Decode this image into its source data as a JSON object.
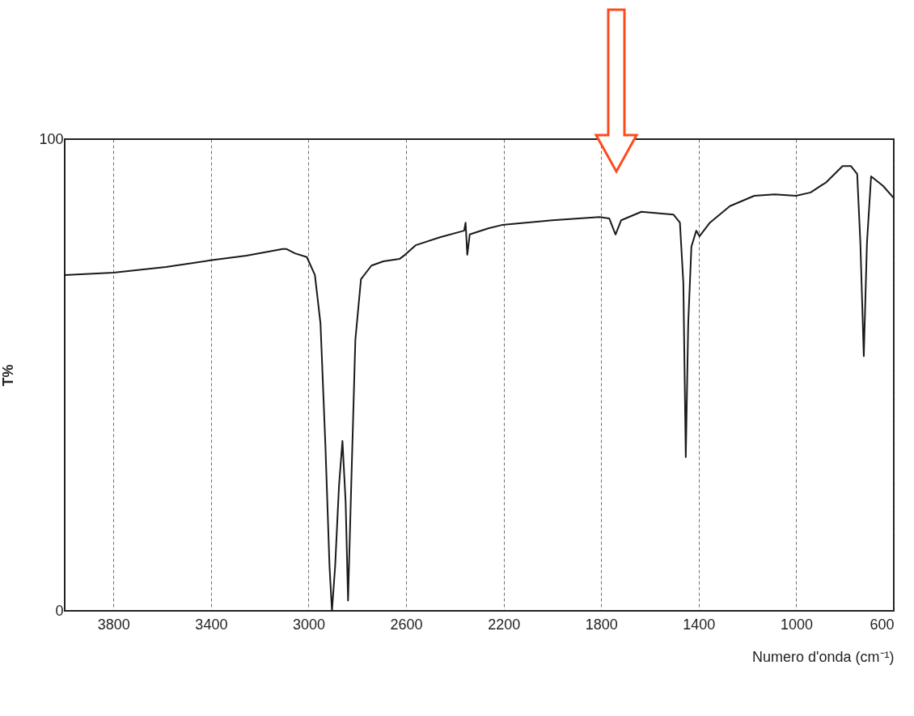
{
  "chart_data": {
    "type": "line",
    "xlabel": "Numero d'onda (cm⁻¹)",
    "ylabel": "T%",
    "xlim": [
      4000,
      600
    ],
    "xticks": [
      3800,
      3400,
      3000,
      2600,
      2200,
      1800,
      1400,
      1000,
      600
    ],
    "ylim": [
      0,
      100
    ],
    "yticks": [
      0,
      100
    ],
    "grid": "x",
    "marker": "none",
    "line_style": "solid",
    "series": [
      {
        "color": "#1a1a1a",
        "x": [
          4000,
          3800,
          3585,
          3403,
          3255,
          3106,
          3090,
          3056,
          3007,
          2974,
          2951,
          2931,
          2914,
          2904,
          2891,
          2875,
          2861,
          2848,
          2838,
          2825,
          2808,
          2785,
          2742,
          2693,
          2627,
          2604,
          2561,
          2461,
          2362,
          2356,
          2349,
          2339,
          2263,
          2207,
          2000,
          1807,
          1767,
          1741,
          1718,
          1635,
          1503,
          1477,
          1463,
          1453,
          1443,
          1430,
          1410,
          1397,
          1354,
          1272,
          1172,
          1089,
          1001,
          941,
          876,
          810,
          776,
          750,
          737,
          723,
          710,
          693,
          644,
          600
        ],
        "values": [
          71.2,
          71.7,
          72.9,
          74.3,
          75.3,
          76.7,
          76.7,
          75.8,
          75.0,
          71.2,
          60.9,
          35.2,
          9.4,
          0,
          9.4,
          26.6,
          36.0,
          23.2,
          2.2,
          26.6,
          57.5,
          70.3,
          73.2,
          74.1,
          74.6,
          75.5,
          77.5,
          79.2,
          80.6,
          82.3,
          75.5,
          79.8,
          81.1,
          81.8,
          82.8,
          83.5,
          83.2,
          79.8,
          82.8,
          84.6,
          84.0,
          82.3,
          69.5,
          32.6,
          60.9,
          77.2,
          80.6,
          79.4,
          82.3,
          85.8,
          88.0,
          88.3,
          88.0,
          88.7,
          90.9,
          94.3,
          94.3,
          92.6,
          78.0,
          54.0,
          78.0,
          92.1,
          90.1,
          87.5
        ]
      }
    ]
  }
}
